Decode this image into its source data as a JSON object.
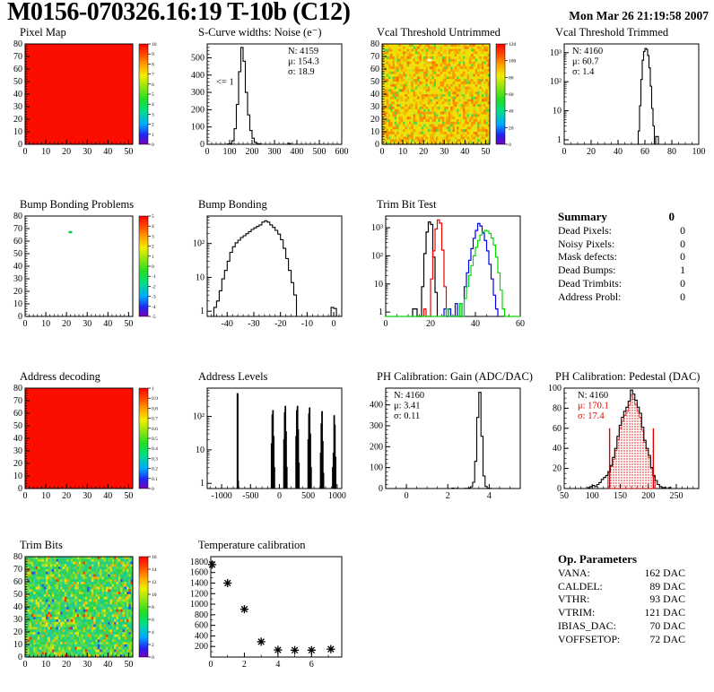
{
  "page": {
    "title": "M0156-070326.16:19 T-10b (C12)",
    "datetime": "Mon Mar 26 21:19:58 2007"
  },
  "summary": {
    "title": "Summary",
    "value": "0",
    "rows": [
      {
        "label": "Dead Pixels:",
        "value": "0"
      },
      {
        "label": "Noisy Pixels:",
        "value": "0"
      },
      {
        "label": "Mask defects:",
        "value": "0"
      },
      {
        "label": "Dead Bumps:",
        "value": "1"
      },
      {
        "label": "Dead Trimbits:",
        "value": "0"
      },
      {
        "label": "Address Probl:",
        "value": "0"
      }
    ]
  },
  "op_parameters": {
    "title": "Op. Parameters",
    "rows": [
      {
        "label": "VANA:",
        "value": "162 DAC"
      },
      {
        "label": "CALDEL:",
        "value": "89 DAC"
      },
      {
        "label": "VTHR:",
        "value": "93 DAC"
      },
      {
        "label": "VTRIM:",
        "value": "121 DAC"
      },
      {
        "label": "IBIAS_DAC:",
        "value": "70 DAC"
      },
      {
        "label": "VOFFSETOP:",
        "value": "72 DAC"
      }
    ]
  },
  "palette_stops": [
    [
      0,
      "#7700bb"
    ],
    [
      0.09,
      "#2222ee"
    ],
    [
      0.2,
      "#00aaff"
    ],
    [
      0.33,
      "#00dd88"
    ],
    [
      0.45,
      "#22dd22"
    ],
    [
      0.58,
      "#99e511"
    ],
    [
      0.68,
      "#eeee00"
    ],
    [
      0.78,
      "#ffaa00"
    ],
    [
      0.88,
      "#ff5500"
    ],
    [
      1,
      "#ff0000"
    ]
  ],
  "chart_data": [
    {
      "id": "pixel_map",
      "title": "Pixel Map",
      "type": "heatmap",
      "fill": "uniform",
      "color": "#fb0d00",
      "xlim": [
        0,
        52
      ],
      "ylim": [
        0,
        80
      ],
      "xticks": [
        0,
        10,
        20,
        30,
        40,
        50
      ],
      "yticks": [
        0,
        10,
        20,
        30,
        40,
        50,
        60,
        70,
        80
      ],
      "xminor": 2,
      "yminor": 2,
      "colorbar": {
        "ticks": [
          "0",
          "1",
          "2",
          "3",
          "4",
          "5",
          "6",
          "7",
          "8",
          "9",
          "10"
        ]
      }
    },
    {
      "id": "scurve_noise",
      "title": "S-Curve widths: Noise (e⁻)",
      "type": "hist",
      "xlim": [
        0,
        600
      ],
      "ylim": [
        0,
        580
      ],
      "xticks": [
        0,
        100,
        200,
        300,
        400,
        500,
        600
      ],
      "yticks": [
        0,
        100,
        200,
        300,
        400,
        500
      ],
      "xminor": 20,
      "yminor": 20,
      "bins": {
        "start": 90,
        "width": 10,
        "values": [
          2,
          4,
          20,
          90,
          230,
          420,
          560,
          480,
          300,
          170,
          80,
          35,
          12,
          4,
          2
        ]
      },
      "extra_bars": [
        [
          360,
          12,
          5
        ]
      ],
      "stats": {
        "x": 0.6,
        "lines": [
          {
            "t": "N: 4159"
          },
          {
            "t": "μ: 154.3"
          },
          {
            "t": "σ: 18.9"
          }
        ]
      },
      "ann": [
        {
          "x": 40,
          "y": 345,
          "t": "<= 1"
        }
      ]
    },
    {
      "id": "vcal_untrimmed",
      "title": "Vcal Threshold Untrimmed",
      "type": "heatmap",
      "fill": "noise",
      "seed": 12345,
      "palette": [
        {
          "c": "#f89200",
          "w": 0.22
        },
        {
          "c": "#f8b400",
          "w": 0.14
        },
        {
          "c": "#f3dc00",
          "w": 0.3
        },
        {
          "c": "#e9e513",
          "w": 0.18
        },
        {
          "c": "#c9e420",
          "w": 0.08
        },
        {
          "c": "#4fd848",
          "w": 0.05
        },
        {
          "c": "#f86e00",
          "w": 0.03
        }
      ],
      "cells": [
        {
          "x": 22,
          "y": 67,
          "c": "#ffffff"
        }
      ],
      "xlim": [
        0,
        52
      ],
      "ylim": [
        0,
        80
      ],
      "xticks": [
        0,
        10,
        20,
        30,
        40,
        50
      ],
      "yticks": [
        0,
        10,
        20,
        30,
        40,
        50,
        60,
        70,
        80
      ],
      "xminor": 2,
      "yminor": 2,
      "colorbar": {
        "ticks": [
          "0",
          "20",
          "40",
          "60",
          "80",
          "100",
          "120"
        ]
      }
    },
    {
      "id": "vcal_trimmed",
      "title": "Vcal Threshold Trimmed",
      "type": "hist",
      "ylog": true,
      "xlim": [
        0,
        100
      ],
      "ylim": [
        0.7,
        2000
      ],
      "xticks": [
        0,
        20,
        40,
        60,
        80,
        100
      ],
      "xminor": 5,
      "bins": {
        "start": 55,
        "width": 1,
        "values": [
          2,
          15,
          120,
          550,
          1100,
          1400,
          1300,
          800,
          300,
          70,
          12,
          3,
          0,
          1.3,
          1.3
        ]
      },
      "stats": {
        "x": 0.06,
        "lines": [
          {
            "t": "N: 4160"
          },
          {
            "t": "μ: 60.7"
          },
          {
            "t": "σ:  1.4"
          }
        ]
      }
    },
    {
      "id": "bump_problems",
      "title": "Bump Bonding Problems",
      "type": "heatmap",
      "fill": "white",
      "cells": [
        {
          "x": 21,
          "y": 67,
          "c": "#00c93c"
        }
      ],
      "xlim": [
        0,
        52
      ],
      "ylim": [
        0,
        80
      ],
      "xticks": [
        0,
        10,
        20,
        30,
        40,
        50
      ],
      "yticks": [
        0,
        10,
        20,
        30,
        40,
        50,
        60,
        70,
        80
      ],
      "xminor": 2,
      "yminor": 2,
      "colorbar": {
        "ticks": [
          "-5",
          "-4",
          "-3",
          "-2",
          "-1",
          "0",
          "1",
          "2",
          "3",
          "4",
          "5"
        ]
      }
    },
    {
      "id": "bump_bonding",
      "title": "Bump Bonding",
      "type": "hist",
      "ylog": true,
      "xlim": [
        -47.5,
        3
      ],
      "ylim": [
        0.7,
        650
      ],
      "xticks": [
        -40,
        -30,
        -20,
        -10,
        0
      ],
      "xminor": 2,
      "bins": {
        "start": -45,
        "width": 1,
        "values": [
          1.3,
          2,
          4,
          9,
          16,
          30,
          55,
          80,
          105,
          125,
          150,
          170,
          195,
          225,
          260,
          290,
          320,
          355,
          430,
          470,
          430,
          355,
          300,
          245,
          190,
          130,
          72,
          36,
          16,
          7,
          3,
          0,
          0,
          0,
          0,
          0,
          0,
          0,
          0,
          0,
          0,
          0,
          0,
          0,
          1.3,
          1.2
        ]
      }
    },
    {
      "id": "trim_bit_test",
      "title": "Trim Bit Test",
      "type": "multihist",
      "ylog": true,
      "xlim": [
        0,
        60
      ],
      "ylim": [
        0.7,
        2600
      ],
      "xticks": [
        0,
        20,
        40,
        60
      ],
      "xminor": 5,
      "series": [
        {
          "color": "#000000",
          "start": 12,
          "width": 1,
          "values": [
            1.3,
            1.3,
            0,
            0,
            8,
            120,
            700,
            1600,
            1300,
            90,
            5
          ]
        },
        {
          "color": "#f00000",
          "start": 17,
          "width": 1,
          "values": [
            1.3,
            0,
            0,
            15,
            150,
            900,
            1900,
            1450,
            160,
            8,
            1.3
          ]
        },
        {
          "color": "#0000e6",
          "start": 26,
          "width": 1,
          "values": [
            1.3,
            0,
            1.3,
            0,
            0,
            2,
            0,
            2,
            0,
            8,
            25,
            70,
            180,
            420,
            800,
            1400,
            1150,
            650,
            350,
            150,
            50,
            15,
            4,
            1.3
          ]
        },
        {
          "color": "#00d800",
          "start": 0,
          "width": 1,
          "values": [
            0,
            0,
            0,
            0,
            0,
            0,
            0,
            0,
            0,
            0,
            0,
            0,
            0,
            0,
            0,
            0,
            0,
            0,
            0,
            0,
            0,
            0,
            0,
            0,
            0,
            0,
            0,
            1.3,
            0,
            0,
            0,
            0,
            0,
            2,
            0,
            3,
            8,
            20,
            45,
            100,
            200,
            350,
            550,
            700,
            800,
            760,
            620,
            430,
            240,
            90,
            25,
            6,
            1.3,
            0,
            0,
            0,
            0,
            0,
            0,
            0
          ]
        }
      ]
    },
    {
      "id": "address_decoding",
      "title": "Address decoding",
      "type": "heatmap",
      "fill": "uniform",
      "color": "#fb0d00",
      "xlim": [
        0,
        52
      ],
      "ylim": [
        0,
        80
      ],
      "xticks": [
        0,
        10,
        20,
        30,
        40,
        50
      ],
      "yticks": [
        0,
        10,
        20,
        30,
        40,
        50,
        60,
        70,
        80
      ],
      "xminor": 2,
      "yminor": 2,
      "colorbar": {
        "ticks": [
          "0",
          "0.1",
          "0.2",
          "0.3",
          "0.4",
          "0.5",
          "0.6",
          "0.7",
          "0.8",
          "0.9",
          "1"
        ]
      }
    },
    {
      "id": "address_levels",
      "title": "Address Levels",
      "type": "bars",
      "ylog": true,
      "xlim": [
        -1250,
        1080
      ],
      "ylim": [
        0.7,
        700
      ],
      "xticks": [
        -1000,
        -500,
        0,
        500,
        1000
      ],
      "xminor": 100,
      "bars": [
        [
          -732,
          16,
          480
        ],
        [
          -714,
          6,
          1.2
        ],
        [
          -141,
          12,
          15
        ],
        [
          -129,
          12,
          110
        ],
        [
          -117,
          12,
          150
        ],
        [
          -105,
          12,
          25
        ],
        [
          -93,
          12,
          3
        ],
        [
          74,
          12,
          20
        ],
        [
          86,
          12,
          130
        ],
        [
          98,
          12,
          200
        ],
        [
          110,
          12,
          35
        ],
        [
          122,
          12,
          3
        ],
        [
          284,
          12,
          25
        ],
        [
          296,
          12,
          150
        ],
        [
          308,
          12,
          200
        ],
        [
          320,
          12,
          40
        ],
        [
          332,
          12,
          4
        ],
        [
          494,
          12,
          20
        ],
        [
          506,
          12,
          120
        ],
        [
          518,
          12,
          180
        ],
        [
          530,
          12,
          30
        ],
        [
          542,
          12,
          3
        ],
        [
          709,
          12,
          8
        ],
        [
          721,
          12,
          60
        ],
        [
          733,
          12,
          140
        ],
        [
          745,
          12,
          18
        ],
        [
          757,
          12,
          2
        ],
        [
          919,
          12,
          3
        ],
        [
          931,
          12,
          8
        ],
        [
          943,
          12,
          105
        ],
        [
          955,
          12,
          55
        ],
        [
          967,
          12,
          6
        ]
      ]
    },
    {
      "id": "ph_gain",
      "title": "PH Calibration: Gain (ADC/DAC)",
      "type": "hist",
      "xlim": [
        -1,
        5.5
      ],
      "ylim": [
        0,
        480
      ],
      "xticks": [
        0,
        2,
        4
      ],
      "yticks": [
        0,
        100,
        200,
        300,
        400
      ],
      "xminor": 0.5,
      "yminor": 20,
      "bins": {
        "start": 2.2,
        "width": 0.1,
        "values": [
          2,
          0,
          1,
          0,
          0,
          0,
          1,
          1,
          3,
          8,
          30,
          130,
          340,
          460,
          250,
          60,
          10,
          2,
          1,
          0
        ]
      },
      "stats": {
        "x": 0.06,
        "lines": [
          {
            "t": "N: 4160"
          },
          {
            "t": "μ: 3.41"
          },
          {
            "t": "σ: 0.11"
          }
        ]
      }
    },
    {
      "id": "ph_pedestal",
      "title": "PH Calibration: Pedestal (DAC)",
      "type": "hist",
      "xlim": [
        50,
        290
      ],
      "ylim": [
        0,
        100
      ],
      "xticks": [
        50,
        100,
        150,
        200,
        250
      ],
      "yticks": [
        0,
        20,
        40,
        60,
        80,
        100
      ],
      "xminor": 10,
      "yminor": 5,
      "bins": {
        "start": 92,
        "width": 4,
        "values": [
          1,
          2,
          3,
          2,
          4,
          6,
          9,
          11,
          13,
          17,
          23,
          31,
          40,
          52,
          63,
          71,
          77,
          81,
          87,
          98,
          94,
          88,
          81,
          75,
          61,
          48,
          40,
          33,
          21,
          13,
          8,
          4,
          2,
          1,
          1,
          0,
          1
        ]
      },
      "overlay": {
        "start": 128,
        "width": 4,
        "color": "#e00000",
        "values": [
          16,
          22,
          29,
          38,
          49,
          60,
          67,
          73,
          77,
          83,
          93,
          89,
          84,
          77,
          71,
          58,
          46,
          38,
          31,
          20,
          12
        ]
      },
      "vlines": [
        {
          "x": 131,
          "y": 60,
          "color": "#e00000"
        },
        {
          "x": 209,
          "y": 60,
          "color": "#e00000"
        }
      ],
      "stats": {
        "x": 0.1,
        "lines": [
          {
            "t": "N: 4160"
          },
          {
            "t": "μ: 170.1",
            "color": "#e00000"
          },
          {
            "t": "σ: 17.4",
            "color": "#e00000"
          }
        ]
      }
    },
    {
      "id": "trim_bits",
      "title": "Trim Bits",
      "type": "heatmap",
      "fill": "noise",
      "seed": 777,
      "palette": [
        {
          "c": "#2ed34c",
          "w": 0.2
        },
        {
          "c": "#3cd86e",
          "w": 0.2
        },
        {
          "c": "#22ca8e",
          "w": 0.14
        },
        {
          "c": "#1fc9b4",
          "w": 0.07
        },
        {
          "c": "#71dc2e",
          "w": 0.14
        },
        {
          "c": "#b2e01e",
          "w": 0.1
        },
        {
          "c": "#e8e414",
          "w": 0.07
        },
        {
          "c": "#f8a600",
          "w": 0.04
        },
        {
          "c": "#f83600",
          "w": 0.02
        },
        {
          "c": "#2b53e8",
          "w": 0.02
        }
      ],
      "xlim": [
        0,
        52
      ],
      "ylim": [
        0,
        80
      ],
      "xticks": [
        0,
        10,
        20,
        30,
        40,
        50
      ],
      "yticks": [
        0,
        10,
        20,
        30,
        40,
        50,
        60,
        70,
        80
      ],
      "xminor": 2,
      "yminor": 2,
      "colorbar": {
        "ticks": [
          "0",
          "2",
          "4",
          "6",
          "8",
          "10",
          "12",
          "14",
          "16"
        ]
      }
    },
    {
      "id": "temp_calibration",
      "title": "Temperature calibration",
      "type": "scatter",
      "xlim": [
        0,
        7.8
      ],
      "ylim": [
        0,
        1900
      ],
      "xticks": [
        0,
        2,
        4,
        6
      ],
      "yticks": [
        200,
        400,
        600,
        800,
        1000,
        1200,
        1400,
        1600,
        1800
      ],
      "xminor": 1,
      "yminor": 100,
      "points": [
        [
          0.08,
          1750
        ],
        [
          1,
          1400
        ],
        [
          2,
          905
        ],
        [
          3,
          290
        ],
        [
          4,
          135
        ],
        [
          5,
          130
        ],
        [
          6,
          130
        ],
        [
          7.15,
          150
        ]
      ]
    }
  ]
}
